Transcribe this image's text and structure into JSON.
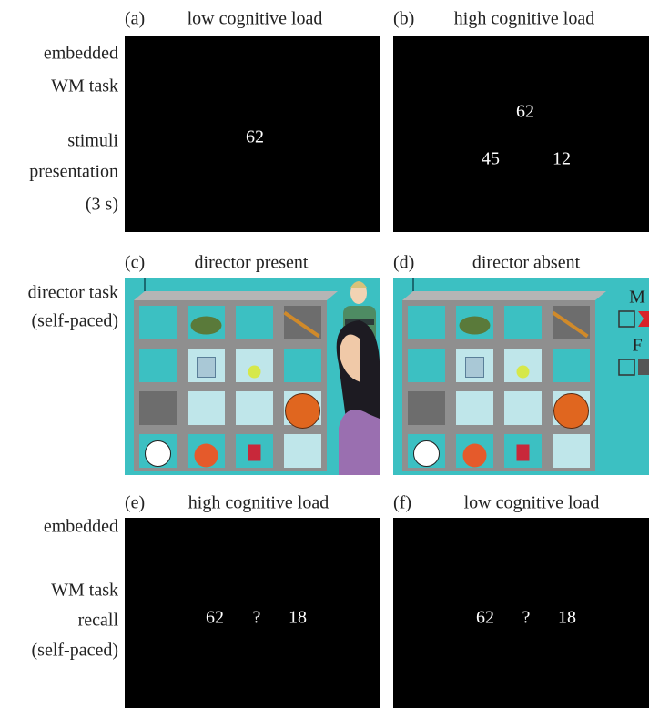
{
  "rows": [
    {
      "labels": [
        "embedded",
        "WM task",
        "stimuli",
        "presentation",
        "(3 s)"
      ]
    },
    {
      "labels": [
        "director task",
        "(self-paced)"
      ]
    },
    {
      "labels": [
        "embedded",
        "WM task",
        "recall",
        "(self-paced)"
      ]
    }
  ],
  "panels": [
    {
      "tag": "(a)",
      "title": "low cognitive load",
      "items": [
        "62"
      ]
    },
    {
      "tag": "(b)",
      "title": "high cognitive load",
      "items": [
        "62",
        "45",
        "12"
      ]
    },
    {
      "tag": "(c)",
      "title": "director present"
    },
    {
      "tag": "(d)",
      "title": "director absent",
      "items": [
        "M",
        "F"
      ]
    },
    {
      "tag": "(e)",
      "title": "high cognitive load",
      "items": [
        "62",
        "?",
        "18"
      ]
    },
    {
      "tag": "(f)",
      "title": "low cognitive load",
      "items": [
        "62",
        "?",
        "18"
      ]
    }
  ]
}
